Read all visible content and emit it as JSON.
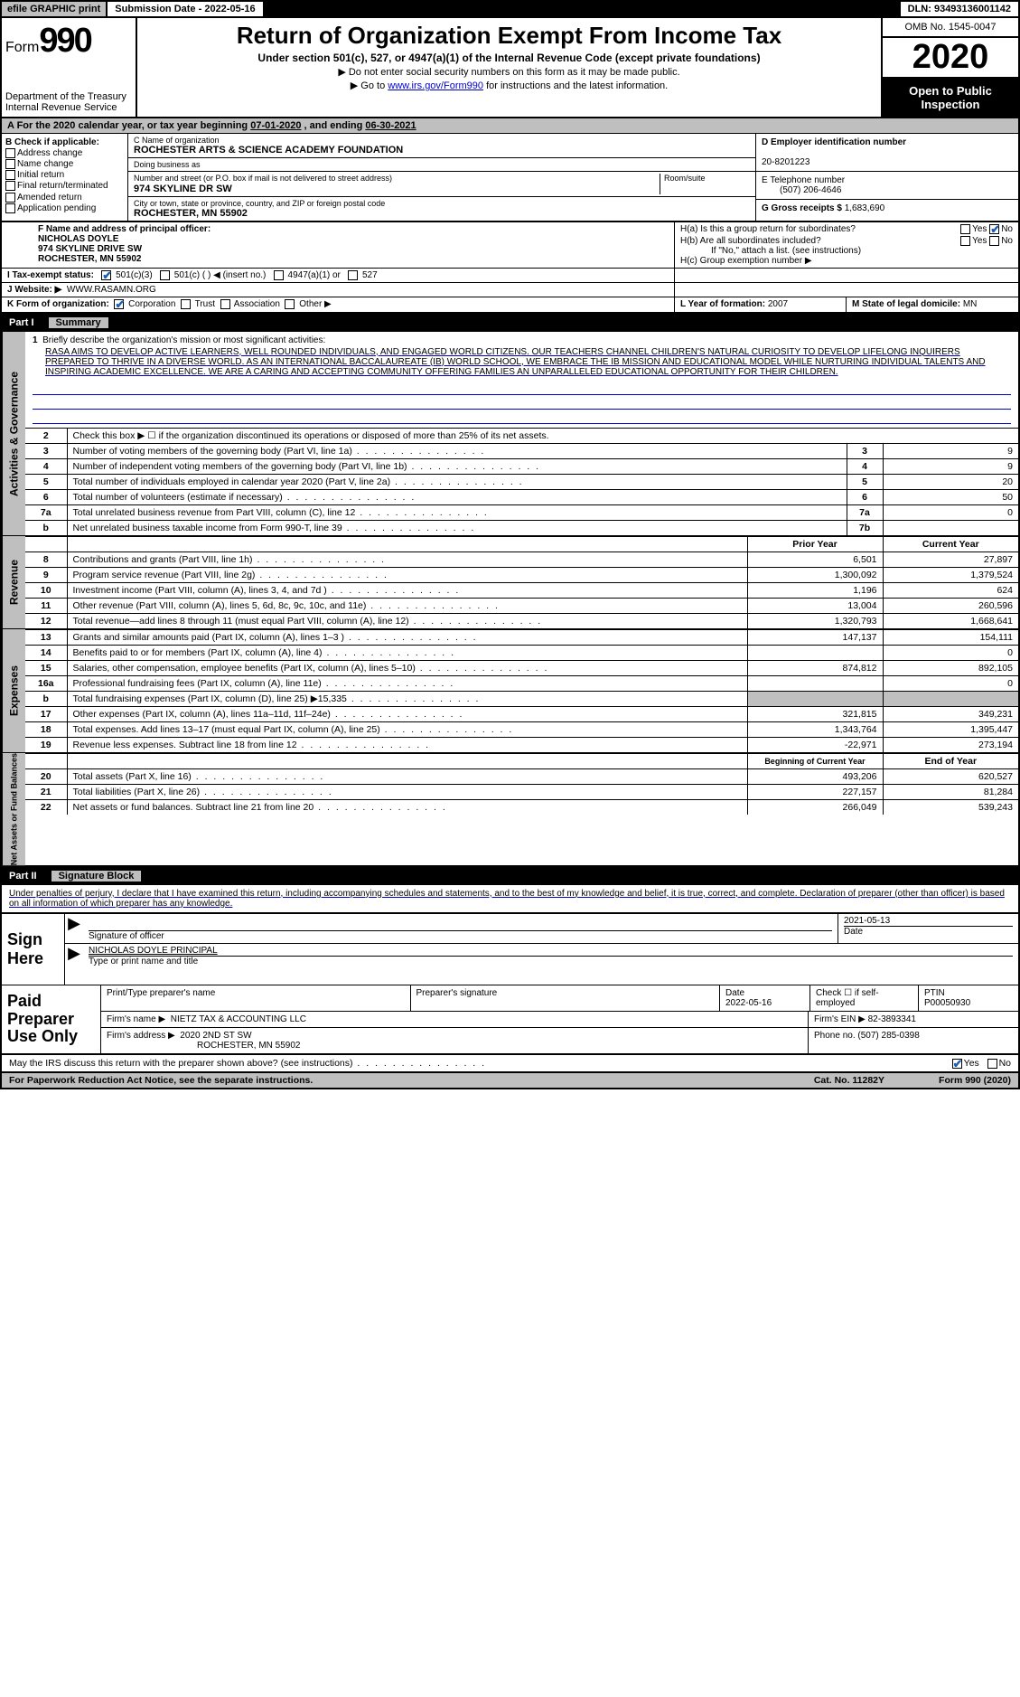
{
  "header": {
    "efile": "efile GRAPHIC print",
    "submission_label": "Submission Date - ",
    "submission_date": "2022-05-16",
    "dln_label": "DLN: ",
    "dln": "93493136001142",
    "form_word": "Form",
    "form_num": "990",
    "dept": "Department of the Treasury\nInternal Revenue Service",
    "title": "Return of Organization Exempt From Income Tax",
    "sub": "Under section 501(c), 527, or 4947(a)(1) of the Internal Revenue Code (except private foundations)",
    "hint1": "▶ Do not enter social security numbers on this form as it may be made public.",
    "hint2_pre": "▶ Go to ",
    "hint2_link": "www.irs.gov/Form990",
    "hint2_post": " for instructions and the latest information.",
    "omb": "OMB No. 1545-0047",
    "year": "2020",
    "inspection": "Open to Public Inspection"
  },
  "period": {
    "text_a": "A For the 2020 calendar year, or tax year beginning ",
    "begin": "07-01-2020",
    "mid": " , and ending ",
    "end": "06-30-2021"
  },
  "boxB": {
    "label": "B Check if applicable:",
    "items": [
      "Address change",
      "Name change",
      "Initial return",
      "Final return/terminated",
      "Amended return",
      "Application pending"
    ]
  },
  "boxC": {
    "name_label": "C Name of organization",
    "name": "ROCHESTER ARTS & SCIENCE ACADEMY FOUNDATION",
    "dba_label": "Doing business as",
    "street_label": "Number and street (or P.O. box if mail is not delivered to street address)",
    "room_label": "Room/suite",
    "street": "974 SKYLINE DR SW",
    "city_label": "City or town, state or province, country, and ZIP or foreign postal code",
    "city": "ROCHESTER, MN  55902"
  },
  "boxD": {
    "label": "D Employer identification number",
    "val": "20-8201223"
  },
  "boxE": {
    "label": "E Telephone number",
    "val": "(507) 206-4646"
  },
  "boxG": {
    "label": "G Gross receipts $",
    "val": "1,683,690"
  },
  "boxF": {
    "label": "F  Name and address of principal officer:",
    "name": "NICHOLAS DOYLE",
    "addr1": "974 SKYLINE DRIVE SW",
    "addr2": "ROCHESTER, MN  55902"
  },
  "boxH": {
    "ha": "H(a)  Is this a group return for subordinates?",
    "hb": "H(b)  Are all subordinates included?",
    "hb_note": "If \"No,\" attach a list. (see instructions)",
    "hc": "H(c)  Group exemption number ▶",
    "yes": "Yes",
    "no": "No"
  },
  "boxI": {
    "label": "I  Tax-exempt status:",
    "o1": "501(c)(3)",
    "o2": "501(c) (  ) ◀ (insert no.)",
    "o3": "4947(a)(1) or",
    "o4": "527"
  },
  "boxJ": {
    "label": "J  Website: ▶",
    "val": "WWW.RASAMN.ORG"
  },
  "boxK": {
    "label": "K Form of organization:",
    "opts": [
      "Corporation",
      "Trust",
      "Association",
      "Other ▶"
    ]
  },
  "boxL": {
    "label": "L Year of formation:",
    "val": "2007"
  },
  "boxM": {
    "label": "M State of legal domicile:",
    "val": "MN"
  },
  "part1": {
    "num": "Part I",
    "title": "Summary"
  },
  "mission": {
    "num": "1",
    "label": "Briefly describe the organization's mission or most significant activities:",
    "text": "RASA AIMS TO DEVELOP ACTIVE LEARNERS, WELL ROUNDED INDIVIDUALS, AND ENGAGED WORLD CITIZENS. OUR TEACHERS CHANNEL CHILDREN'S NATURAL CURIOSITY TO DEVELOP LIFELONG INQUIRERS PREPARED TO THRIVE IN A DIVERSE WORLD. AS AN INTERNATIONAL BACCALAUREATE (IB) WORLD SCHOOL, WE EMBRACE THE IB MISSION AND EDUCATIONAL MODEL WHILE NURTURING INDIVIDUAL TALENTS AND INSPIRING ACADEMIC EXCELLENCE. WE ARE A CARING AND ACCEPTING COMMUNITY OFFERING FAMILIES AN UNPARALLELED EDUCATIONAL OPPORTUNITY FOR THEIR CHILDREN."
  },
  "gov_lines": [
    {
      "n": "2",
      "d": "Check this box ▶ ☐  if the organization discontinued its operations or disposed of more than 25% of its net assets.",
      "box": "",
      "v": ""
    },
    {
      "n": "3",
      "d": "Number of voting members of the governing body (Part VI, line 1a)",
      "box": "3",
      "v": "9"
    },
    {
      "n": "4",
      "d": "Number of independent voting members of the governing body (Part VI, line 1b)",
      "box": "4",
      "v": "9"
    },
    {
      "n": "5",
      "d": "Total number of individuals employed in calendar year 2020 (Part V, line 2a)",
      "box": "5",
      "v": "20"
    },
    {
      "n": "6",
      "d": "Total number of volunteers (estimate if necessary)",
      "box": "6",
      "v": "50"
    },
    {
      "n": "7a",
      "d": "Total unrelated business revenue from Part VIII, column (C), line 12",
      "box": "7a",
      "v": "0"
    },
    {
      "n": "b",
      "d": "Net unrelated business taxable income from Form 990-T, line 39",
      "box": "7b",
      "v": ""
    }
  ],
  "two_col_header": {
    "prior": "Prior Year",
    "current": "Current Year"
  },
  "revenue": [
    {
      "n": "8",
      "d": "Contributions and grants (Part VIII, line 1h)",
      "p": "6,501",
      "c": "27,897"
    },
    {
      "n": "9",
      "d": "Program service revenue (Part VIII, line 2g)",
      "p": "1,300,092",
      "c": "1,379,524"
    },
    {
      "n": "10",
      "d": "Investment income (Part VIII, column (A), lines 3, 4, and 7d )",
      "p": "1,196",
      "c": "624"
    },
    {
      "n": "11",
      "d": "Other revenue (Part VIII, column (A), lines 5, 6d, 8c, 9c, 10c, and 11e)",
      "p": "13,004",
      "c": "260,596"
    },
    {
      "n": "12",
      "d": "Total revenue—add lines 8 through 11 (must equal Part VIII, column (A), line 12)",
      "p": "1,320,793",
      "c": "1,668,641"
    }
  ],
  "expenses": [
    {
      "n": "13",
      "d": "Grants and similar amounts paid (Part IX, column (A), lines 1–3 )",
      "p": "147,137",
      "c": "154,111"
    },
    {
      "n": "14",
      "d": "Benefits paid to or for members (Part IX, column (A), line 4)",
      "p": "",
      "c": "0"
    },
    {
      "n": "15",
      "d": "Salaries, other compensation, employee benefits (Part IX, column (A), lines 5–10)",
      "p": "874,812",
      "c": "892,105"
    },
    {
      "n": "16a",
      "d": "Professional fundraising fees (Part IX, column (A), line 11e)",
      "p": "",
      "c": "0"
    },
    {
      "n": "b",
      "d": "Total fundraising expenses (Part IX, column (D), line 25) ▶15,335",
      "p": "grey",
      "c": "grey"
    },
    {
      "n": "17",
      "d": "Other expenses (Part IX, column (A), lines 11a–11d, 11f–24e)",
      "p": "321,815",
      "c": "349,231"
    },
    {
      "n": "18",
      "d": "Total expenses. Add lines 13–17 (must equal Part IX, column (A), line 25)",
      "p": "1,343,764",
      "c": "1,395,447"
    },
    {
      "n": "19",
      "d": "Revenue less expenses. Subtract line 18 from line 12",
      "p": "-22,971",
      "c": "273,194"
    }
  ],
  "net_header": {
    "begin": "Beginning of Current Year",
    "end": "End of Year"
  },
  "net": [
    {
      "n": "20",
      "d": "Total assets (Part X, line 16)",
      "p": "493,206",
      "c": "620,527"
    },
    {
      "n": "21",
      "d": "Total liabilities (Part X, line 26)",
      "p": "227,157",
      "c": "81,284"
    },
    {
      "n": "22",
      "d": "Net assets or fund balances. Subtract line 21 from line 20",
      "p": "266,049",
      "c": "539,243"
    }
  ],
  "side_labels": {
    "gov": "Activities & Governance",
    "rev": "Revenue",
    "exp": "Expenses",
    "net": "Net Assets or Fund Balances"
  },
  "part2": {
    "num": "Part II",
    "title": "Signature Block"
  },
  "sig_intro": "Under penalties of perjury, I declare that I have examined this return, including accompanying schedules and statements, and to the best of my knowledge and belief, it is true, correct, and complete. Declaration of preparer (other than officer) is based on all information of which preparer has any knowledge.",
  "sign": {
    "here": "Sign Here",
    "sig_label": "Signature of officer",
    "date_val": "2021-05-13",
    "date_label": "Date",
    "name": "NICHOLAS DOYLE  PRINCIPAL",
    "name_label": "Type or print name and title"
  },
  "prep": {
    "label": "Paid Preparer Use Only",
    "h_name": "Print/Type preparer's name",
    "h_sig": "Preparer's signature",
    "h_date": "Date",
    "date_val": "2022-05-16",
    "self_emp": "Check ☐ if self-employed",
    "ptin_label": "PTIN",
    "ptin": "P00050930",
    "firm_name_label": "Firm's name    ▶",
    "firm_name": "NIETZ TAX & ACCOUNTING LLC",
    "firm_ein_label": "Firm's EIN ▶",
    "firm_ein": "82-3893341",
    "firm_addr_label": "Firm's address ▶",
    "firm_addr1": "2020 2ND ST SW",
    "firm_addr2": "ROCHESTER, MN  55902",
    "phone_label": "Phone no.",
    "phone": "(507) 285-0398"
  },
  "discuss": {
    "q": "May the IRS discuss this return with the preparer shown above? (see instructions)",
    "yes": "Yes",
    "no": "No"
  },
  "footer": {
    "left": "For Paperwork Reduction Act Notice, see the separate instructions.",
    "mid": "Cat. No. 11282Y",
    "right": "Form 990 (2020)"
  },
  "colors": {
    "grey": "#bfbfbf",
    "link": "#0000cc",
    "check": "#1a5fb4"
  }
}
